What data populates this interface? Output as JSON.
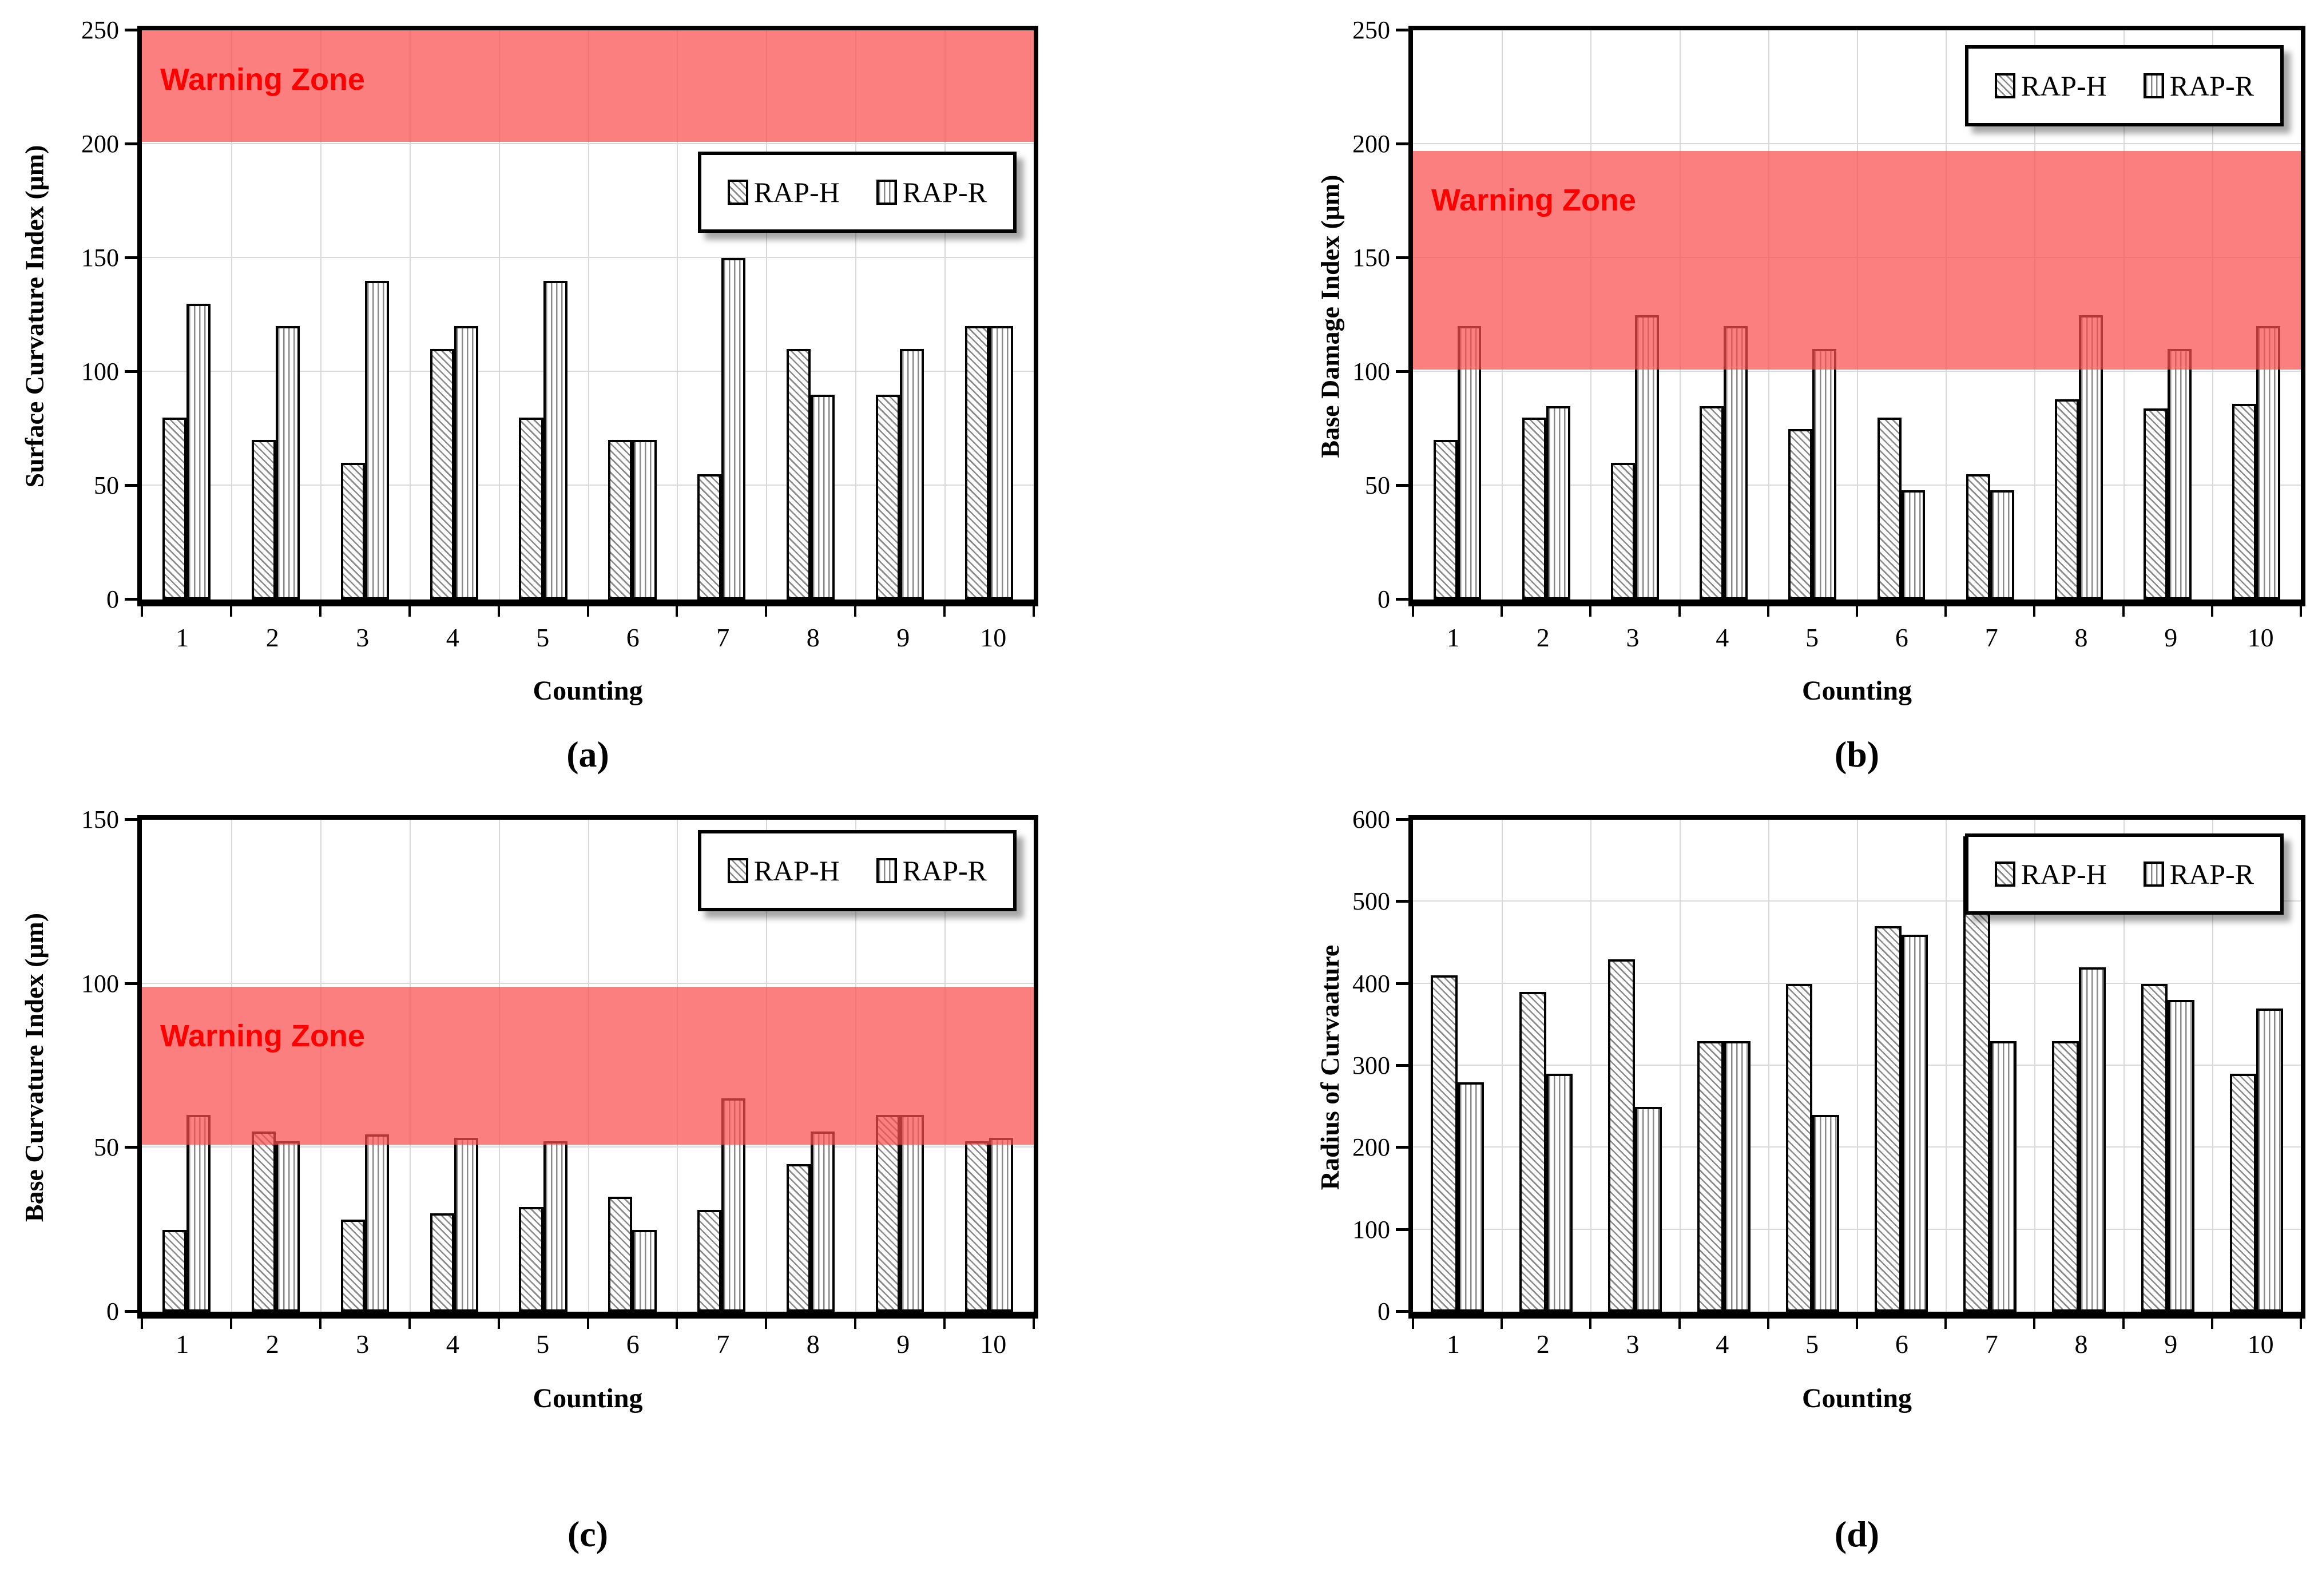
{
  "figure": {
    "background": "#ffffff",
    "colors": {
      "warning_fill": "rgba(250,77,77,0.72)",
      "warning_text": "#ff0000",
      "hatch_line": "#8a8a8a",
      "grid_line": "#d9d9d9",
      "bar_border": "#000000",
      "plot_border": "#000000"
    }
  },
  "chart_data": [
    {
      "panel_label": "(a)",
      "type": "bar",
      "ylabel": "Surface Curvature Index (μm)",
      "xlabel": "Counting",
      "categories": [
        "1",
        "2",
        "3",
        "4",
        "5",
        "6",
        "7",
        "8",
        "9",
        "10"
      ],
      "series": [
        {
          "name": "RAP-H",
          "pattern": "diagonal-hatch",
          "values": [
            80,
            70,
            60,
            110,
            80,
            70,
            55,
            110,
            90,
            120
          ]
        },
        {
          "name": "RAP-R",
          "pattern": "vertical-hatch",
          "values": [
            130,
            120,
            140,
            120,
            140,
            70,
            150,
            90,
            110,
            120
          ]
        }
      ],
      "ylim": [
        0,
        250
      ],
      "ytick_step": 50,
      "grid": true,
      "bar_width_frac": 0.27,
      "legend_position": "upper-right",
      "warning_zone": {
        "label": "Warning Zone",
        "from": 201,
        "to": 250
      }
    },
    {
      "panel_label": "(b)",
      "type": "bar",
      "ylabel": "Base Damage Index (μm)",
      "xlabel": "Counting",
      "categories": [
        "1",
        "2",
        "3",
        "4",
        "5",
        "6",
        "7",
        "8",
        "9",
        "10"
      ],
      "series": [
        {
          "name": "RAP-H",
          "pattern": "diagonal-hatch",
          "values": [
            70,
            80,
            60,
            85,
            75,
            80,
            55,
            88,
            84,
            86
          ]
        },
        {
          "name": "RAP-R",
          "pattern": "vertical-hatch",
          "values": [
            120,
            85,
            125,
            120,
            110,
            48,
            48,
            125,
            110,
            120
          ]
        }
      ],
      "ylim": [
        0,
        250
      ],
      "ytick_step": 50,
      "grid": true,
      "bar_width_frac": 0.27,
      "legend_position": "upper-right",
      "warning_zone": {
        "label": "Warning Zone",
        "from": 101,
        "to": 197
      }
    },
    {
      "panel_label": "(c)",
      "type": "bar",
      "ylabel": "Base Curvature Index (μm)",
      "xlabel": "Counting",
      "categories": [
        "1",
        "2",
        "3",
        "4",
        "5",
        "6",
        "7",
        "8",
        "9",
        "10"
      ],
      "series": [
        {
          "name": "RAP-H",
          "pattern": "diagonal-hatch",
          "values": [
            25,
            55,
            28,
            30,
            32,
            35,
            31,
            45,
            60,
            52
          ]
        },
        {
          "name": "RAP-R",
          "pattern": "vertical-hatch",
          "values": [
            60,
            52,
            54,
            53,
            52,
            25,
            65,
            55,
            60,
            53
          ]
        }
      ],
      "ylim": [
        0,
        150
      ],
      "ytick_step": 50,
      "grid": true,
      "bar_width_frac": 0.27,
      "legend_position": "upper-right",
      "warning_zone": {
        "label": "Warning Zone",
        "from": 51,
        "to": 99
      }
    },
    {
      "panel_label": "(d)",
      "type": "bar",
      "ylabel": "Radius of Curvaature",
      "xlabel": "Counting",
      "categories": [
        "1",
        "2",
        "3",
        "4",
        "5",
        "6",
        "7",
        "8",
        "9",
        "10"
      ],
      "series": [
        {
          "name": "RAP-H",
          "pattern": "diagonal-hatch",
          "values": [
            410,
            390,
            430,
            330,
            400,
            470,
            580,
            330,
            400,
            290
          ]
        },
        {
          "name": "RAP-R",
          "pattern": "vertical-hatch",
          "values": [
            280,
            290,
            250,
            330,
            240,
            460,
            330,
            420,
            380,
            370
          ]
        }
      ],
      "ylim": [
        0,
        600
      ],
      "ytick_step": 100,
      "grid": true,
      "bar_width_frac": 0.3,
      "legend_position": "upper-right",
      "warning_zone": null
    }
  ]
}
